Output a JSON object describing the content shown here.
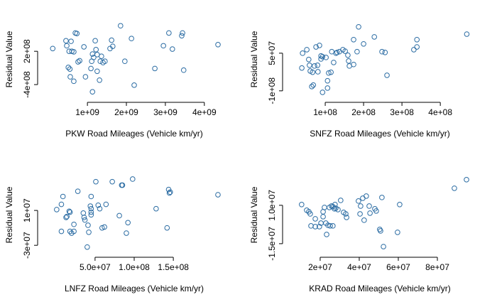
{
  "chart_data": [
    {
      "type": "scatter",
      "x_label": "PKW Road Mileages (Vehicle km/yr)",
      "y_label": "Residual Value",
      "color": "#2b6ca3",
      "x": [
        110000000.0,
        450000000.0,
        470000000.0,
        530000000.0,
        600000000.0,
        690000000.0,
        650000000.0,
        580000000.0,
        760000000.0,
        730000000.0,
        550000000.0,
        510000000.0,
        800000000.0,
        650000000.0,
        560000000.0,
        910000000.0,
        950000000.0,
        1090000000.0,
        1130000000.0,
        1110000000.0,
        1160000000.0,
        1200000000.0,
        1220000000.0,
        1250000000.0,
        1330000000.0,
        1250000000.0,
        1310000000.0,
        1450000000.0,
        1360000000.0,
        1400000000.0,
        1130000000.0,
        1580000000.0,
        1650000000.0,
        1620000000.0,
        1850000000.0,
        1960000000.0,
        2130000000.0,
        2200000000.0,
        2730000000.0,
        2950000000.0,
        3090000000.0,
        3180000000.0,
        3420000000.0,
        3440000000.0,
        3470000000.0,
        4350000000.0
      ],
      "values": [
        250000000.0,
        390000000.0,
        300000000.0,
        200000000.0,
        200000000.0,
        530000000.0,
        190000000.0,
        380000000.0,
        10000000.0,
        520000000.0,
        -120000000.0,
        -90000000.0,
        30000000.0,
        -340000000.0,
        -260000000.0,
        280000000.0,
        -260000000.0,
        -110000000.0,
        150000000.0,
        20000000.0,
        90000000.0,
        390000000.0,
        230000000.0,
        140000000.0,
        20000000.0,
        -160000000.0,
        -320000000.0,
        20000000.0,
        110000000.0,
        -4000000.0,
        -530000000.0,
        250000000.0,
        290000000.0,
        400000000.0,
        660000000.0,
        20000000.0,
        430000000.0,
        -410000000.0,
        -110000000.0,
        300000000.0,
        530000000.0,
        240000000.0,
        480000000.0,
        530000000.0,
        -140000000.0,
        320000000.0
      ],
      "xlim": [
        -150000000.0,
        4550000000.0
      ],
      "ylim": [
        -630000000.0,
        740000000.0
      ],
      "xticks": [
        {
          "value": 1000000000.0,
          "label": "1e+09"
        },
        {
          "value": 2000000000.0,
          "label": "2e+09"
        },
        {
          "value": 3000000000.0,
          "label": "3e+09"
        },
        {
          "value": 4000000000.0,
          "label": "4e+09"
        }
      ],
      "yticks": [
        {
          "value": -400000000.0,
          "label": "-4e+08"
        },
        {
          "value": 200000000.0,
          "label": "2e+08"
        }
      ]
    },
    {
      "type": "scatter",
      "x_label": "SNFZ Road Mileages (Vehicle km/yr)",
      "y_label": "Residual Value",
      "color": "#2b6ca3",
      "x": [
        39000000.0,
        41000000.0,
        52000000.0,
        57000000.0,
        59000000.0,
        61000000.0,
        67000000.0,
        69000000.0,
        65000000.0,
        72000000.0,
        76000000.0,
        80000000.0,
        81000000.0,
        85000000.0,
        89000000.0,
        89000000.0,
        93000000.0,
        102000000.0,
        109000000.0,
        115000000.0,
        106000000.0,
        106000000.0,
        122000000.0,
        128000000.0,
        131000000.0,
        137000000.0,
        146000000.0,
        159000000.0,
        161000000.0,
        163000000.0,
        174000000.0,
        174000000.0,
        187000000.0,
        183000000.0,
        200000000.0,
        228000000.0,
        248000000.0,
        256000000.0,
        261000000.0,
        331000000.0,
        339000000.0,
        339000000.0,
        469000000.0,
        93000000.0,
        117000000.0,
        152000000.0
      ],
      "values": [
        -9000000.0,
        50000000.0,
        64000000.0,
        25000000.0,
        2000000.0,
        -21000000.0,
        -26000000.0,
        -77000000.0,
        -83000000.0,
        -1000000.0,
        75000000.0,
        2000000.0,
        -24000000.0,
        81000000.0,
        27000000.0,
        39000000.0,
        36000000.0,
        33000000.0,
        -29000000.0,
        -26000000.0,
        -60000000.0,
        -89000000.0,
        13000000.0,
        50000000.0,
        53000000.0,
        56000000.0,
        64000000.0,
        42000000.0,
        19000000.0,
        -1000000.0,
        5000000.0,
        104000000.0,
        155000000.0,
        56000000.0,
        87000000.0,
        115000000.0,
        56000000.0,
        53000000.0,
        -38000000.0,
        64000000.0,
        104000000.0,
        75000000.0,
        126000000.0,
        -106000000.0,
        56000000.0,
        58000000.0
      ],
      "xlim": [
        1800000.0,
        483000000.0
      ],
      "ylim": [
        -126000000.0,
        177000000.0
      ],
      "xticks": [
        {
          "value": 100000000.0,
          "label": "1e+08"
        },
        {
          "value": 200000000.0,
          "label": "2e+08"
        },
        {
          "value": 300000000.0,
          "label": "3e+08"
        },
        {
          "value": 400000000.0,
          "label": "4e+08"
        }
      ],
      "yticks": [
        {
          "value": -100000000.0,
          "label": "-1e+08"
        },
        {
          "value": 50000000.0,
          "label": "5e+07"
        }
      ]
    },
    {
      "type": "scatter",
      "x_label": "LNFZ Road Mileages (Vehicle km/yr)",
      "y_label": "Residual Value",
      "color": "#2b6ca3",
      "x": [
        1000000.0,
        7000000.0,
        9000000.0,
        7000000.0,
        13000000.0,
        14000000.0,
        17000000.0,
        18000000.0,
        18000000.0,
        20000000.0,
        23000000.0,
        23000000.0,
        28000000.0,
        35000000.0,
        36000000.0,
        37000000.0,
        41000000.0,
        42000000.0,
        44000000.0,
        45000000.0,
        45000000.0,
        45000000.0,
        51000000.0,
        54000000.0,
        56000000.0,
        59000000.0,
        62000000.0,
        64000000.0,
        72000000.0,
        81000000.0,
        84000000.0,
        85000000.0,
        90000000.0,
        98000000.0,
        128000000.0,
        142000000.0,
        144000000.0,
        146000000.0,
        145000000.0,
        207000000.0,
        40000000.0,
        92000000.0,
        45000000.0
      ],
      "values": [
        11000000.0,
        17000000.0,
        26000000.0,
        -14000000.0,
        2000000.0,
        3000000.0,
        9000000.0,
        8000000.0,
        -14000000.0,
        -16000000.0,
        -14000000.0,
        -6000000.0,
        32000000.0,
        7000000.0,
        2000000.0,
        -1000000.0,
        -7000000.0,
        -15000000.0,
        15000000.0,
        12000000.0,
        5000000.0,
        8000000.0,
        43000000.0,
        16000000.0,
        12000000.0,
        -10000000.0,
        -9000000.0,
        17000000.0,
        43000000.0,
        4000000.0,
        39000000.0,
        39000000.0,
        -16000000.0,
        46000000.0,
        12000000.0,
        -10000000.0,
        34000000.0,
        31000000.0,
        30000000.0,
        28000000.0,
        -32000000.0,
        -4000000.0,
        26000000.0
      ],
      "xlim": [
        -17000000.0,
        217000000.0
      ],
      "ylim": [
        -38000000.0,
        47600000.0
      ],
      "xticks": [
        {
          "value": 50000000.0,
          "label": "5.0e+07"
        },
        {
          "value": 100000000.0,
          "label": "1.0e+08"
        },
        {
          "value": 150000000.0,
          "label": "1.5e+08"
        }
      ],
      "yticks": [
        {
          "value": -30000000.0,
          "label": "-3e+07"
        },
        {
          "value": 10000000.0,
          "label": "1e+07"
        }
      ]
    },
    {
      "type": "scatter",
      "x_label": "KRAD Road Mileages (Vehicle km/yr)",
      "y_label": "Residual Value",
      "color": "#2b6ca3",
      "x": [
        10500000.0,
        13100000.0,
        14200000.0,
        14900000.0,
        15300000.0,
        17500000.0,
        17500000.0,
        19600000.0,
        20400000.0,
        21500000.0,
        21500000.0,
        22200000.0,
        22900000.0,
        23300000.0,
        24000000.0,
        24700000.0,
        25100000.0,
        25800000.0,
        26500000.0,
        26500000.0,
        27300000.0,
        27600000.0,
        28000000.0,
        29100000.0,
        30500000.0,
        32000000.0,
        33100000.0,
        33500000.0,
        39600000.0,
        40400000.0,
        40700000.0,
        41800000.0,
        42500000.0,
        43600000.0,
        45100000.0,
        45500000.0,
        48000000.0,
        48700000.0,
        50500000.0,
        50900000.0,
        51600000.0,
        52400000.0,
        59600000.0,
        60700000.0,
        88700000.0,
        94900000.0
      ],
      "values": [
        10500000.0,
        6800000.0,
        5800000.0,
        4400000.0,
        -3400000.0,
        1200000.0,
        -3900000.0,
        -3900000.0,
        -1600000.0,
        5800000.0,
        2600000.0,
        8600000.0,
        -1600000.0,
        -9000000.0,
        -3000000.0,
        8600000.0,
        -3400000.0,
        9500000.0,
        9100000.0,
        -3400000.0,
        7700000.0,
        10500000.0,
        8100000.0,
        7200000.0,
        13200000.0,
        5400000.0,
        4400000.0,
        2100000.0,
        12800000.0,
        4400000.0,
        9500000.0,
        14600000.0,
        300000.0,
        16000000.0,
        9500000.0,
        4900000.0,
        7700000.0,
        6300000.0,
        -5700000.0,
        -6700000.0,
        15100000.0,
        -16900000.0,
        -7600000.0,
        10500000.0,
        21100000.0,
        26700000.0
      ],
      "xlim": [
        3300000.0,
        97800000.0
      ],
      "ylim": [
        -20600000.0,
        28000000.0
      ],
      "xticks": [
        {
          "value": 20000000.0,
          "label": "2e+07"
        },
        {
          "value": 40000000.0,
          "label": "4e+07"
        },
        {
          "value": 60000000.0,
          "label": "6e+07"
        },
        {
          "value": 80000000.0,
          "label": "8e+07"
        }
      ],
      "yticks": [
        {
          "value": -15000000.0,
          "label": "-1.5e+07"
        },
        {
          "value": 10000000.0,
          "label": "1.0e+07"
        }
      ]
    }
  ]
}
